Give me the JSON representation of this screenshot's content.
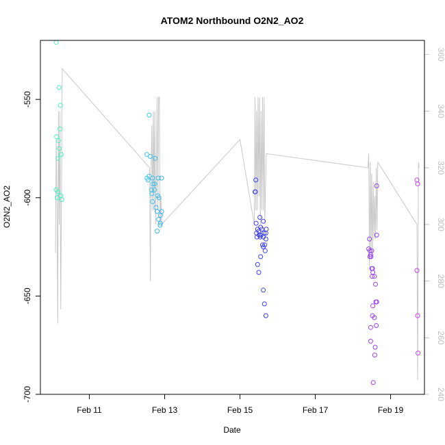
{
  "chart_data": {
    "type": "scatter",
    "title": "ATOM2 Northbound O2N2_AO2",
    "xlabel": "Date",
    "ylabel": "O2N2_AO2",
    "x_unit": "days since Feb 10 00:00",
    "xlim": [
      -0.3,
      9.9
    ],
    "ylim": [
      -700,
      -520
    ],
    "y2lim": [
      240,
      365
    ],
    "y_ticks": [
      -550,
      -600,
      -650,
      -700
    ],
    "y2_ticks": [
      240,
      260,
      280,
      300,
      320,
      340,
      360
    ],
    "x_ticks": [
      {
        "value": 1,
        "label": "Feb 11"
      },
      {
        "value": 3,
        "label": "Feb 13"
      },
      {
        "value": 5,
        "label": "Feb 15"
      },
      {
        "value": 7,
        "label": "Feb 17"
      },
      {
        "value": 9,
        "label": "Feb 19"
      }
    ],
    "colors": {
      "grey_line": "#c8c8c8",
      "right_axis": "#bebebe",
      "gradient": [
        "#4af2c4",
        "#3dc8ef",
        "#2a3ff2",
        "#6a3ff0",
        "#c83ff0"
      ]
    },
    "series": [
      {
        "name": "O2N2_AO2 points",
        "axis": "left",
        "points": [
          [
            0.12,
            -521
          ],
          [
            0.2,
            -544
          ],
          [
            0.23,
            -553
          ],
          [
            0.22,
            -565
          ],
          [
            0.13,
            -569
          ],
          [
            0.18,
            -571
          ],
          [
            0.2,
            -575
          ],
          [
            0.25,
            -578
          ],
          [
            0.17,
            -580
          ],
          [
            0.12,
            -596
          ],
          [
            0.17,
            -597
          ],
          [
            0.24,
            -599
          ],
          [
            0.14,
            -600
          ],
          [
            0.27,
            -601
          ],
          [
            2.53,
            -578
          ],
          [
            2.62,
            -579
          ],
          [
            2.75,
            -580
          ],
          [
            2.59,
            -589
          ],
          [
            2.68,
            -590
          ],
          [
            2.53,
            -590
          ],
          [
            2.56,
            -591
          ],
          [
            2.83,
            -590
          ],
          [
            2.92,
            -590
          ],
          [
            2.69,
            -593
          ],
          [
            2.74,
            -593
          ],
          [
            2.65,
            -596
          ],
          [
            2.73,
            -596
          ],
          [
            2.66,
            -598
          ],
          [
            2.82,
            -599
          ],
          [
            2.85,
            -600
          ],
          [
            2.68,
            -602
          ],
          [
            2.77,
            -605
          ],
          [
            2.8,
            -607
          ],
          [
            2.92,
            -607
          ],
          [
            2.89,
            -609
          ],
          [
            2.84,
            -611
          ],
          [
            2.89,
            -613
          ],
          [
            2.88,
            -614
          ],
          [
            2.8,
            -617
          ],
          [
            2.59,
            -558
          ],
          [
            5.42,
            -591
          ],
          [
            5.4,
            -597
          ],
          [
            5.41,
            -597
          ],
          [
            5.53,
            -610
          ],
          [
            5.43,
            -613
          ],
          [
            5.62,
            -612
          ],
          [
            5.55,
            -615
          ],
          [
            5.58,
            -616
          ],
          [
            5.7,
            -616
          ],
          [
            5.47,
            -616
          ],
          [
            5.5,
            -617
          ],
          [
            5.44,
            -618
          ],
          [
            5.51,
            -619
          ],
          [
            5.56,
            -619
          ],
          [
            5.64,
            -618
          ],
          [
            5.69,
            -618
          ],
          [
            5.45,
            -620
          ],
          [
            5.54,
            -620
          ],
          [
            5.62,
            -620
          ],
          [
            5.69,
            -621
          ],
          [
            5.6,
            -624
          ],
          [
            5.66,
            -624
          ],
          [
            5.62,
            -625
          ],
          [
            5.67,
            -627
          ],
          [
            5.55,
            -630
          ],
          [
            5.47,
            -634
          ],
          [
            5.5,
            -638
          ],
          [
            5.62,
            -647
          ],
          [
            5.65,
            -654
          ],
          [
            5.69,
            -660
          ],
          [
            8.44,
            -621
          ],
          [
            8.42,
            -626
          ],
          [
            8.45,
            -627
          ],
          [
            8.5,
            -627
          ],
          [
            8.47,
            -629
          ],
          [
            8.45,
            -630
          ],
          [
            8.48,
            -630
          ],
          [
            8.5,
            -636
          ],
          [
            8.52,
            -636
          ],
          [
            8.53,
            -638
          ],
          [
            8.51,
            -640
          ],
          [
            8.57,
            -640
          ],
          [
            8.6,
            -644
          ],
          [
            8.61,
            -653
          ],
          [
            8.63,
            -653
          ],
          [
            8.53,
            -655
          ],
          [
            8.47,
            -666
          ],
          [
            8.52,
            -660
          ],
          [
            8.57,
            -661
          ],
          [
            8.62,
            -665
          ],
          [
            8.47,
            -673
          ],
          [
            8.59,
            -676
          ],
          [
            8.58,
            -680
          ],
          [
            8.54,
            -694
          ],
          [
            8.63,
            -619
          ],
          [
            8.63,
            -594
          ],
          [
            9.7,
            -591
          ],
          [
            9.72,
            -593
          ],
          [
            9.7,
            -637
          ],
          [
            9.72,
            -660
          ],
          [
            9.73,
            -679
          ]
        ]
      },
      {
        "name": "secondary trace",
        "axis": "right",
        "points": [
          [
            0.1,
            290
          ],
          [
            0.12,
            330
          ],
          [
            0.14,
            310
          ],
          [
            0.16,
            265
          ],
          [
            0.18,
            340
          ],
          [
            0.2,
            300
          ],
          [
            0.22,
            340
          ],
          [
            0.24,
            270
          ],
          [
            0.26,
            310
          ],
          [
            0.28,
            355
          ],
          [
            2.6,
            320
          ],
          [
            2.62,
            280
          ],
          [
            2.64,
            320
          ],
          [
            2.66,
            335
          ],
          [
            2.68,
            305
          ],
          [
            2.7,
            340
          ],
          [
            2.72,
            305
          ],
          [
            2.74,
            340
          ],
          [
            2.76,
            300
          ],
          [
            2.78,
            320
          ],
          [
            2.8,
            345
          ],
          [
            2.82,
            305
          ],
          [
            2.84,
            345
          ],
          [
            2.86,
            345
          ],
          [
            2.88,
            300
          ],
          [
            2.9,
            310
          ],
          [
            2.92,
            300
          ],
          [
            5.0,
            330
          ],
          [
            5.38,
            300
          ],
          [
            5.4,
            345
          ],
          [
            5.42,
            305
          ],
          [
            5.44,
            340
          ],
          [
            5.46,
            305
          ],
          [
            5.48,
            345
          ],
          [
            5.5,
            310
          ],
          [
            5.52,
            345
          ],
          [
            5.54,
            300
          ],
          [
            5.56,
            340
          ],
          [
            5.58,
            305
          ],
          [
            5.6,
            345
          ],
          [
            5.62,
            305
          ],
          [
            5.64,
            345
          ],
          [
            5.66,
            300
          ],
          [
            5.68,
            315
          ],
          [
            5.7,
            325
          ],
          [
            8.4,
            320
          ],
          [
            8.42,
            325
          ],
          [
            8.44,
            285
          ],
          [
            8.46,
            322
          ],
          [
            8.48,
            290
          ],
          [
            8.5,
            318
          ],
          [
            8.52,
            290
          ],
          [
            8.54,
            315
          ],
          [
            8.56,
            295
          ],
          [
            8.58,
            310
          ],
          [
            8.6,
            295
          ],
          [
            8.62,
            320
          ],
          [
            8.64,
            298
          ],
          [
            8.66,
            322
          ],
          [
            9.7,
            300
          ],
          [
            9.72,
            245
          ],
          [
            9.74,
            322
          ],
          [
            9.76,
            320
          ]
        ]
      }
    ]
  }
}
